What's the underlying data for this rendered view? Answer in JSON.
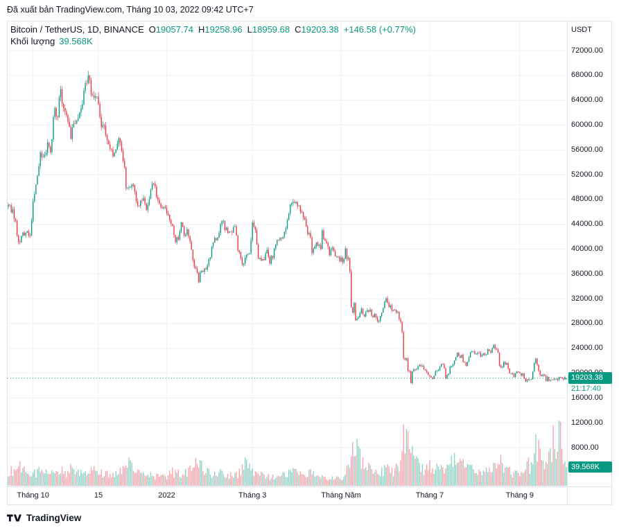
{
  "export_header": {
    "text": "Đã xuất bản TradingView.com, Tháng 10 03, 2022 09:42 UTC+7"
  },
  "legend": {
    "symbol": "Bitcoin / TetherUS, 1D, BINANCE",
    "ohlc": [
      {
        "label": "O",
        "value": "19057.74"
      },
      {
        "label": "H",
        "value": "19258.96"
      },
      {
        "label": "L",
        "value": "18959.68"
      },
      {
        "label": "C",
        "value": "19203.38"
      }
    ],
    "change": "+146.58 (+0.77%)",
    "volume_label": "Khối lượng",
    "volume_value": "39.568K"
  },
  "price_axis": {
    "unit": "USDT",
    "labels": [
      "72000.00",
      "68000.00",
      "64000.00",
      "60000.00",
      "56000.00",
      "52000.00",
      "48000.00",
      "44000.00",
      "40000.00",
      "36000.00",
      "32000.00",
      "28000.00",
      "24000.00",
      "20000.00",
      "16000.00",
      "12000.00",
      "8000.00"
    ],
    "price_badge": {
      "value": "19203.38",
      "countdown": "21:17:40"
    },
    "volume_badge": "39.568K"
  },
  "time_axis": {
    "labels": [
      {
        "text": "Tháng 10",
        "day": 17
      },
      {
        "text": "15",
        "day": 62
      },
      {
        "text": "2022",
        "day": 109
      },
      {
        "text": "Tháng 3",
        "day": 168
      },
      {
        "text": "Tháng Năm",
        "day": 229
      },
      {
        "text": "Tháng 7",
        "day": 290
      },
      {
        "text": "Tháng 9",
        "day": 352
      }
    ]
  },
  "footer": {
    "brand": "TradingView"
  },
  "colors": {
    "up": "#089981",
    "down": "#F23645",
    "up_volume": "rgba(8,153,129,0.45)",
    "down_volume": "rgba(242,54,69,0.45)",
    "grid": "#eef1f6",
    "border": "#e0e3eb",
    "text": "#131722",
    "badge_bg": "#089981",
    "badge_text": "#ffffff"
  },
  "chart_data": {
    "type": "candlestick+volume",
    "title": "Bitcoin / TetherUS",
    "interval": "1D",
    "exchange": "BINANCE",
    "days": 385,
    "current_price": 19203.38,
    "last": {
      "open": 19057.74,
      "high": 19258.96,
      "low": 18959.68,
      "close": 19203.38,
      "volume_k": 39.568
    },
    "y_axis": {
      "unit": "USDT",
      "max": 72000,
      "min": 8000,
      "step": 4000
    },
    "price_keypoints": [
      [
        0,
        47200
      ],
      [
        3,
        46000
      ],
      [
        5,
        44800
      ],
      [
        7,
        40800
      ],
      [
        10,
        42100
      ],
      [
        12,
        43200
      ],
      [
        15,
        41600
      ],
      [
        17,
        48200
      ],
      [
        20,
        51500
      ],
      [
        22,
        55000
      ],
      [
        25,
        54700
      ],
      [
        27,
        57400
      ],
      [
        29,
        54900
      ],
      [
        31,
        62000
      ],
      [
        34,
        61700
      ],
      [
        36,
        66000
      ],
      [
        38,
        62300
      ],
      [
        40,
        60800
      ],
      [
        43,
        58500
      ],
      [
        45,
        60600
      ],
      [
        48,
        61300
      ],
      [
        51,
        63300
      ],
      [
        53,
        66000
      ],
      [
        55,
        67500
      ],
      [
        58,
        64900
      ],
      [
        60,
        65000
      ],
      [
        62,
        63600
      ],
      [
        64,
        60100
      ],
      [
        66,
        59700
      ],
      [
        68,
        56900
      ],
      [
        70,
        56300
      ],
      [
        73,
        54800
      ],
      [
        75,
        57300
      ],
      [
        77,
        57000
      ],
      [
        80,
        53600
      ],
      [
        81,
        49200
      ],
      [
        83,
        50100
      ],
      [
        86,
        50100
      ],
      [
        88,
        47700
      ],
      [
        90,
        46700
      ],
      [
        93,
        48900
      ],
      [
        95,
        46900
      ],
      [
        97,
        48600
      ],
      [
        100,
        50800
      ],
      [
        102,
        48900
      ],
      [
        104,
        47600
      ],
      [
        106,
        47100
      ],
      [
        108,
        46200
      ],
      [
        110,
        45800
      ],
      [
        113,
        43400
      ],
      [
        115,
        41600
      ],
      [
        117,
        41800
      ],
      [
        119,
        43900
      ],
      [
        121,
        42600
      ],
      [
        123,
        43100
      ],
      [
        125,
        40700
      ],
      [
        127,
        38700
      ],
      [
        129,
        36400
      ],
      [
        131,
        35100
      ],
      [
        132,
        36600
      ],
      [
        134,
        36700
      ],
      [
        136,
        37000
      ],
      [
        138,
        37900
      ],
      [
        139,
        38500
      ],
      [
        141,
        41400
      ],
      [
        143,
        41500
      ],
      [
        145,
        42400
      ],
      [
        147,
        44600
      ],
      [
        149,
        43500
      ],
      [
        151,
        42600
      ],
      [
        154,
        42400
      ],
      [
        156,
        44000
      ],
      [
        158,
        40100
      ],
      [
        161,
        37300
      ],
      [
        163,
        38300
      ],
      [
        165,
        39200
      ],
      [
        166,
        39200
      ],
      [
        168,
        44400
      ],
      [
        170,
        43200
      ],
      [
        172,
        39000
      ],
      [
        174,
        38400
      ],
      [
        176,
        38700
      ],
      [
        178,
        39400
      ],
      [
        180,
        37800
      ],
      [
        183,
        39700
      ],
      [
        185,
        41000
      ],
      [
        187,
        41300
      ],
      [
        190,
        42900
      ],
      [
        192,
        44500
      ],
      [
        194,
        46900
      ],
      [
        196,
        47500
      ],
      [
        198,
        47100
      ],
      [
        200,
        46600
      ],
      [
        202,
        46400
      ],
      [
        203,
        45500
      ],
      [
        205,
        43200
      ],
      [
        206,
        42200
      ],
      [
        208,
        42300
      ],
      [
        209,
        39500
      ],
      [
        211,
        40100
      ],
      [
        213,
        41100
      ],
      [
        215,
        39900
      ],
      [
        216,
        42800
      ],
      [
        218,
        41500
      ],
      [
        219,
        40500
      ],
      [
        221,
        39500
      ],
      [
        223,
        39700
      ],
      [
        225,
        38600
      ],
      [
        227,
        38600
      ],
      [
        229,
        38500
      ],
      [
        230,
        37700
      ],
      [
        232,
        39700
      ],
      [
        234,
        38100
      ],
      [
        235,
        36000
      ],
      [
        236,
        31000
      ],
      [
        237,
        30100
      ],
      [
        238,
        31000
      ],
      [
        239,
        28900
      ],
      [
        240,
        29000
      ],
      [
        242,
        29300
      ],
      [
        243,
        30100
      ],
      [
        245,
        29500
      ],
      [
        246,
        29700
      ],
      [
        248,
        30200
      ],
      [
        249,
        30300
      ],
      [
        251,
        29000
      ],
      [
        252,
        29200
      ],
      [
        254,
        28700
      ],
      [
        255,
        28600
      ],
      [
        257,
        29500
      ],
      [
        259,
        31800
      ],
      [
        260,
        31700
      ],
      [
        262,
        31000
      ],
      [
        264,
        30200
      ],
      [
        265,
        29900
      ],
      [
        267,
        30100
      ],
      [
        269,
        29100
      ],
      [
        270,
        28400
      ],
      [
        271,
        26700
      ],
      [
        272,
        22500
      ],
      [
        273,
        22200
      ],
      [
        274,
        22600
      ],
      [
        275,
        20500
      ],
      [
        276,
        20400
      ],
      [
        277,
        18400
      ],
      [
        278,
        20500
      ],
      [
        279,
        20600
      ],
      [
        280,
        20600
      ],
      [
        282,
        21100
      ],
      [
        283,
        21100
      ],
      [
        285,
        21000
      ],
      [
        287,
        20700
      ],
      [
        289,
        19900
      ],
      [
        291,
        19200
      ],
      [
        292,
        19300
      ],
      [
        294,
        20200
      ],
      [
        295,
        20600
      ],
      [
        297,
        20900
      ],
      [
        298,
        21600
      ],
      [
        300,
        20900
      ],
      [
        301,
        19300
      ],
      [
        303,
        20100
      ],
      [
        304,
        20800
      ],
      [
        306,
        21600
      ],
      [
        308,
        22500
      ],
      [
        309,
        23300
      ],
      [
        311,
        22500
      ],
      [
        312,
        22700
      ],
      [
        314,
        21600
      ],
      [
        315,
        21300
      ],
      [
        317,
        22500
      ],
      [
        319,
        23800
      ],
      [
        321,
        23300
      ],
      [
        323,
        23300
      ],
      [
        325,
        22600
      ],
      [
        327,
        22900
      ],
      [
        329,
        23200
      ],
      [
        330,
        23900
      ],
      [
        332,
        23200
      ],
      [
        334,
        24300
      ],
      [
        336,
        23900
      ],
      [
        337,
        23200
      ],
      [
        338,
        21500
      ],
      [
        339,
        20800
      ],
      [
        341,
        21500
      ],
      [
        343,
        21600
      ],
      [
        345,
        20100
      ],
      [
        346,
        20000
      ],
      [
        348,
        19600
      ],
      [
        350,
        20000
      ],
      [
        351,
        20300
      ],
      [
        353,
        19800
      ],
      [
        354,
        19800
      ],
      [
        356,
        18900
      ],
      [
        357,
        18800
      ],
      [
        359,
        19100
      ],
      [
        360,
        19300
      ],
      [
        362,
        21700
      ],
      [
        363,
        22400
      ],
      [
        365,
        20200
      ],
      [
        367,
        19700
      ],
      [
        369,
        19400
      ],
      [
        370,
        19000
      ],
      [
        371,
        19200
      ],
      [
        372,
        18500
      ],
      [
        374,
        19000
      ],
      [
        375,
        19100
      ],
      [
        377,
        18900
      ],
      [
        378,
        19100
      ],
      [
        379,
        19400
      ],
      [
        380,
        19600
      ],
      [
        381,
        19300
      ],
      [
        382,
        19100
      ],
      [
        383,
        19150
      ],
      [
        384,
        19203.38
      ]
    ],
    "volume_keypoints_k": [
      [
        0,
        28
      ],
      [
        5,
        35
      ],
      [
        7,
        45
      ],
      [
        12,
        30
      ],
      [
        17,
        26
      ],
      [
        22,
        34
      ],
      [
        27,
        30
      ],
      [
        36,
        32
      ],
      [
        40,
        28
      ],
      [
        43,
        34
      ],
      [
        48,
        26
      ],
      [
        55,
        30
      ],
      [
        58,
        36
      ],
      [
        62,
        26
      ],
      [
        70,
        22
      ],
      [
        75,
        26
      ],
      [
        80,
        38
      ],
      [
        81,
        68
      ],
      [
        86,
        30
      ],
      [
        90,
        26
      ],
      [
        95,
        22
      ],
      [
        100,
        20
      ],
      [
        108,
        18
      ],
      [
        113,
        28
      ],
      [
        121,
        24
      ],
      [
        129,
        48
      ],
      [
        132,
        42
      ],
      [
        139,
        24
      ],
      [
        149,
        26
      ],
      [
        154,
        22
      ],
      [
        158,
        22
      ],
      [
        163,
        48
      ],
      [
        168,
        34
      ],
      [
        176,
        22
      ],
      [
        185,
        18
      ],
      [
        190,
        22
      ],
      [
        196,
        28
      ],
      [
        203,
        20
      ],
      [
        209,
        30
      ],
      [
        216,
        22
      ],
      [
        219,
        18
      ],
      [
        227,
        18
      ],
      [
        230,
        20
      ],
      [
        232,
        26
      ],
      [
        235,
        40
      ],
      [
        237,
        72
      ],
      [
        240,
        78
      ],
      [
        243,
        48
      ],
      [
        246,
        38
      ],
      [
        252,
        30
      ],
      [
        255,
        26
      ],
      [
        259,
        36
      ],
      [
        265,
        28
      ],
      [
        269,
        40
      ],
      [
        271,
        62
      ],
      [
        272,
        132
      ],
      [
        274,
        88
      ],
      [
        277,
        72
      ],
      [
        280,
        48
      ],
      [
        285,
        34
      ],
      [
        289,
        40
      ],
      [
        295,
        34
      ],
      [
        301,
        30
      ],
      [
        304,
        44
      ],
      [
        309,
        54
      ],
      [
        315,
        34
      ],
      [
        319,
        44
      ],
      [
        327,
        30
      ],
      [
        330,
        34
      ],
      [
        334,
        40
      ],
      [
        337,
        34
      ],
      [
        339,
        56
      ],
      [
        343,
        32
      ],
      [
        348,
        26
      ],
      [
        351,
        22
      ],
      [
        354,
        28
      ],
      [
        357,
        48
      ],
      [
        360,
        36
      ],
      [
        363,
        85
      ],
      [
        364,
        78
      ],
      [
        367,
        55
      ],
      [
        370,
        50
      ],
      [
        372,
        70
      ],
      [
        374,
        62
      ],
      [
        375,
        108
      ],
      [
        377,
        80
      ],
      [
        378,
        95
      ],
      [
        380,
        125
      ],
      [
        381,
        85
      ],
      [
        382,
        70
      ],
      [
        383,
        55
      ],
      [
        384,
        39.568
      ]
    ]
  }
}
